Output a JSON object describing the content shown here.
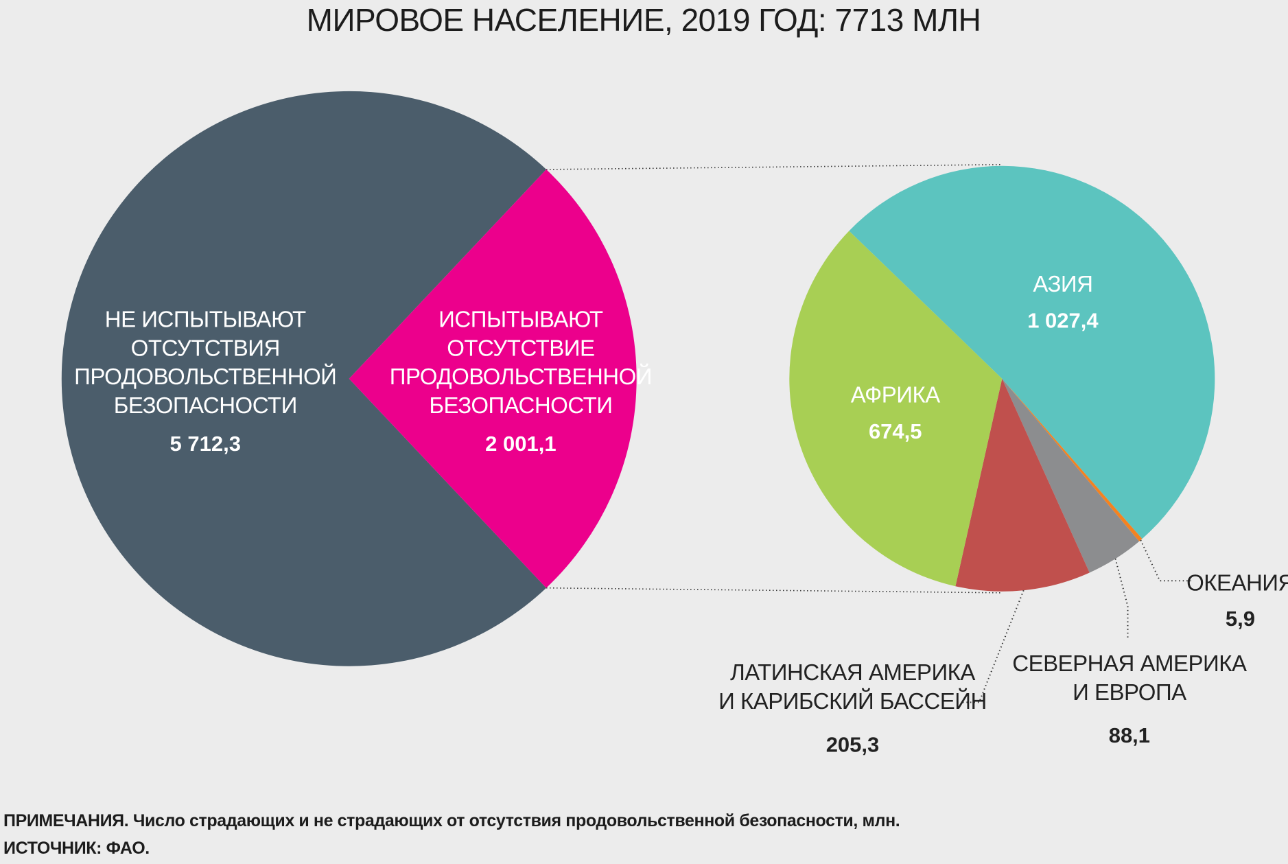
{
  "title": "МИРОВОЕ НАСЕЛЕНИЕ, 2019 ГОД: 7713 МЛН",
  "chart_data": [
    {
      "type": "pie",
      "title": "МИРОВОЕ НАСЕЛЕНИЕ, 2019 ГОД: 7713 МЛН",
      "unit": "млн",
      "slices": [
        {
          "key": "not_affected",
          "label_lines": [
            "НЕ ИСПЫТЫВАЮТ",
            "ОТСУТСТВИЯ",
            "ПРОДОВОЛЬСТВЕННОЙ",
            "БЕЗОПАСНОСТИ"
          ],
          "value": 5712.3,
          "value_label": "5 712,3",
          "color": "#4b5d6b"
        },
        {
          "key": "affected",
          "label_lines": [
            "ИСПЫТЫВАЮТ",
            "ОТСУТСТВИЕ",
            "ПРОДОВОЛЬСТВЕННОЙ",
            "БЕЗОПАСНОСТИ"
          ],
          "value": 2001.1,
          "value_label": "2 001,1",
          "color": "#ec008c"
        }
      ]
    },
    {
      "type": "pie",
      "unit": "млн",
      "slices": [
        {
          "key": "asia",
          "label_lines": [
            "АЗИЯ"
          ],
          "value": 1027.4,
          "value_label": "1 027,4",
          "color": "#5cc4bf"
        },
        {
          "key": "oceania",
          "label_lines": [
            "ОКЕАНИЯ"
          ],
          "value": 5.9,
          "value_label": "5,9",
          "color": "#f58220"
        },
        {
          "key": "na_europe",
          "label_lines": [
            "СЕВЕРНАЯ АМЕРИКА",
            "И ЕВРОПА"
          ],
          "value": 88.1,
          "value_label": "88,1",
          "color": "#8c8d8f"
        },
        {
          "key": "latam",
          "label_lines": [
            "ЛАТИНСКАЯ АМЕРИКА",
            "И КАРИБСКИЙ БАССЕЙН"
          ],
          "value": 205.3,
          "value_label": "205,3",
          "color": "#c0504d"
        },
        {
          "key": "africa",
          "label_lines": [
            "АФРИКА"
          ],
          "value": 674.5,
          "value_label": "674,5",
          "color": "#a8cf54"
        }
      ]
    }
  ],
  "footer": {
    "notes": "ПРИМЕЧАНИЯ. Число страдающих и не страдающих от отсутствия продовольственной безопасности, млн.",
    "source": "ИСТОЧНИК: ФАО."
  }
}
